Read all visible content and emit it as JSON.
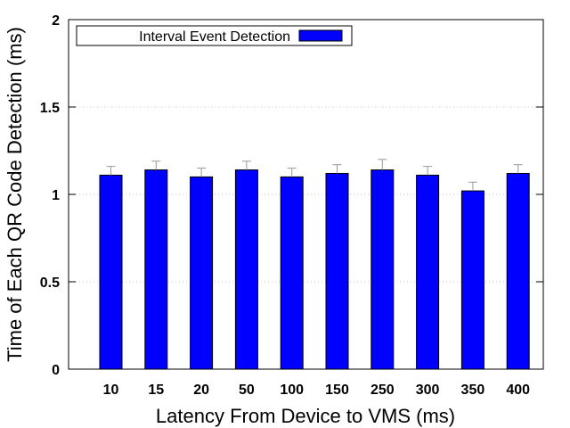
{
  "chart_data": {
    "type": "bar",
    "xlabel": "Latency From Device to VMS (ms)",
    "ylabel": "Time of Each QR Code Detection (ms)",
    "ylim": [
      0,
      2
    ],
    "yticks": [
      "0",
      "0.5",
      "1",
      "1.5",
      "2"
    ],
    "grid": true,
    "legend_position": "top-left",
    "categories": [
      "10",
      "15",
      "20",
      "50",
      "100",
      "150",
      "250",
      "300",
      "350",
      "400"
    ],
    "series": [
      {
        "name": "Interval Event Detection",
        "color": "#0000ff",
        "values": [
          1.11,
          1.14,
          1.1,
          1.14,
          1.1,
          1.12,
          1.14,
          1.11,
          1.02,
          1.12
        ],
        "error_upper": [
          0.05,
          0.05,
          0.05,
          0.05,
          0.05,
          0.05,
          0.06,
          0.05,
          0.05,
          0.05
        ]
      }
    ]
  }
}
